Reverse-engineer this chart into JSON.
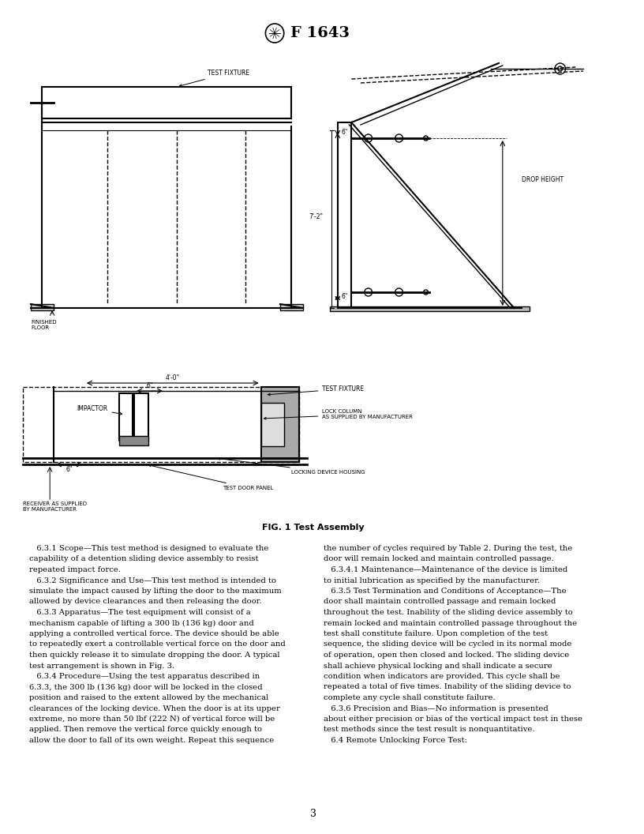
{
  "title": "F 1643",
  "page_number": "3",
  "fig_caption": "FIG. 1 Test Assembly",
  "background_color": "#ffffff",
  "text_color": "#000000",
  "line_color": "#000000",
  "body_text_left": [
    "   6.3.1 Scope—This test method is designed to evaluate the",
    "capability of a detention sliding device assembly to resist",
    "repeated impact force.",
    "   6.3.2 Significance and Use—This test method is intended to",
    "simulate the impact caused by lifting the door to the maximum",
    "allowed by device clearances and then releasing the door.",
    "   6.3.3 Apparatus—The test equipment will consist of a",
    "mechanism capable of lifting a 300 lb (136 kg) door and",
    "applying a controlled vertical force. The device should be able",
    "to repeatedly exert a controllable vertical force on the door and",
    "then quickly release it to simulate dropping the door. A typical",
    "test arrangement is shown in Fig. 3.",
    "   6.3.4 Procedure—Using the test apparatus described in",
    "6.3.3, the 300 lb (136 kg) door will be locked in the closed",
    "position and raised to the extent allowed by the mechanical",
    "clearances of the locking device. When the door is at its upper",
    "extreme, no more than 50 lbf (222 N) of vertical force will be",
    "applied. Then remove the vertical force quickly enough to",
    "allow the door to fall of its own weight. Repeat this sequence"
  ],
  "body_text_right": [
    "the number of cycles required by Table 2. During the test, the",
    "door will remain locked and maintain controlled passage.",
    "   6.3.4.1 Maintenance—Maintenance of the device is limited",
    "to initial lubrication as specified by the manufacturer.",
    "   6.3.5 Test Termination and Conditions of Acceptance—The",
    "door shall maintain controlled passage and remain locked",
    "throughout the test. Inability of the sliding device assembly to",
    "remain locked and maintain controlled passage throughout the",
    "test shall constitute failure. Upon completion of the test",
    "sequence, the sliding device will be cycled in its normal mode",
    "of operation, open then closed and locked. The sliding device",
    "shall achieve physical locking and shall indicate a secure",
    "condition when indicators are provided. This cycle shall be",
    "repeated a total of five times. Inability of the sliding device to",
    "complete any cycle shall constitute failure.",
    "   6.3.6 Precision and Bias—No information is presented",
    "about either precision or bias of the vertical impact test in these",
    "test methods since the test result is nonquantitative.",
    "   6.4 Remote Unlocking Force Test:"
  ]
}
